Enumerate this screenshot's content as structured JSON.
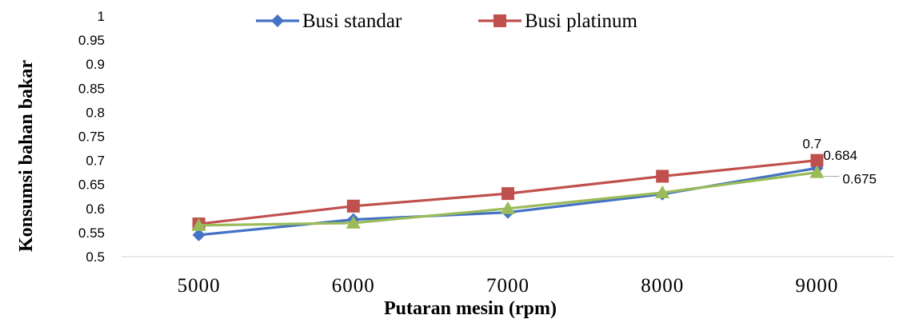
{
  "chart_data": {
    "type": "line",
    "title": "",
    "xlabel": "Putaran mesin (rpm)",
    "ylabel": "Konsumsi bahan bakar",
    "x": [
      5000,
      6000,
      7000,
      8000,
      9000
    ],
    "x_tick_labels": [
      "5000",
      "6000",
      "7000",
      "8000",
      "9000"
    ],
    "ylim": [
      0.5,
      1
    ],
    "y_ticks": [
      0.5,
      0.55,
      0.6,
      0.65,
      0.7,
      0.75,
      0.8,
      0.85,
      0.9,
      0.95,
      1
    ],
    "y_tick_labels": [
      "0.5",
      "0.55",
      "0.6",
      "0.65",
      "0.7",
      "0.75",
      "0.8",
      "0.85",
      "0.9",
      "0.95",
      "1"
    ],
    "grid": false,
    "legend_position": "top",
    "series": [
      {
        "name": "Busi standar",
        "color": "#4472C4",
        "marker": "diamond",
        "values": [
          0.545,
          0.577,
          0.592,
          0.63,
          0.684
        ]
      },
      {
        "name": "Busi platinum",
        "color": "#C0504D",
        "marker": "square",
        "values": [
          0.568,
          0.605,
          0.631,
          0.667,
          0.7
        ]
      },
      {
        "name": "",
        "color": "#9BBB59",
        "marker": "triangle",
        "values": [
          0.565,
          0.57,
          0.6,
          0.633,
          0.675
        ]
      }
    ],
    "data_labels": [
      {
        "series": 1,
        "index": 4,
        "text": "0.7"
      },
      {
        "series": 0,
        "index": 4,
        "text": "0.684"
      },
      {
        "series": 2,
        "index": 4,
        "text": "0.675"
      }
    ]
  }
}
